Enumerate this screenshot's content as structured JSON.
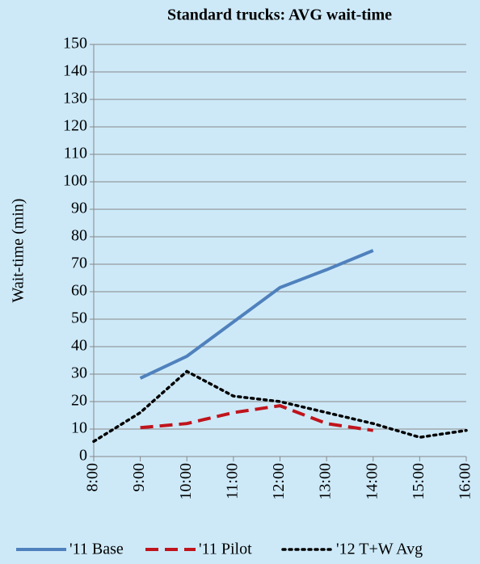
{
  "chart_data": {
    "type": "line",
    "title": "Standard trucks: AVG wait-time",
    "y_label": "Wait-time (min)",
    "categories": [
      "8:00",
      "9:00",
      "10:00",
      "11:00",
      "12:00",
      "13:00",
      "14:00",
      "15:00",
      "16:00"
    ],
    "series": [
      {
        "name": "'11 Base",
        "color": "#4f81bd",
        "dash": "solid",
        "values": [
          null,
          28.5,
          36.5,
          49,
          61.5,
          68,
          75,
          null,
          null
        ]
      },
      {
        "name": "'11 Pilot",
        "color": "#c0141c",
        "dash": "dashed",
        "values": [
          null,
          10.5,
          12,
          16,
          18.5,
          12,
          9.5,
          null,
          null
        ]
      },
      {
        "name": "'12 T+W Avg",
        "color": "#000000",
        "dash": "dotted",
        "values": [
          5.5,
          16,
          31,
          22,
          20,
          16,
          12,
          7,
          9.5
        ]
      }
    ],
    "ylim": [
      0,
      150
    ],
    "yticks": [
      0,
      10,
      20,
      30,
      40,
      50,
      60,
      70,
      80,
      90,
      100,
      110,
      120,
      130,
      140,
      150
    ],
    "grid": true
  }
}
